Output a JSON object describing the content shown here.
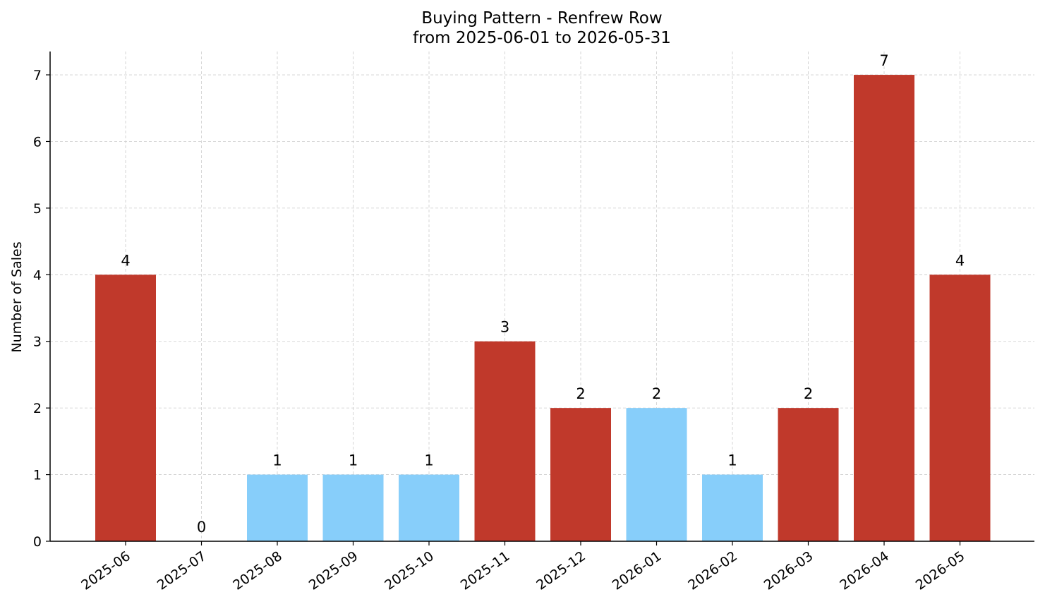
{
  "chart_data": {
    "type": "bar",
    "title": "Buying Pattern - Renfrew Row",
    "subtitle": "from 2025-06-01 to 2026-05-31",
    "xlabel": "",
    "ylabel": "Number of Sales",
    "ylim": [
      0,
      7.35
    ],
    "yticks": [
      "0",
      "1",
      "2",
      "3",
      "4",
      "5",
      "6",
      "7"
    ],
    "grid": true,
    "legend": "none",
    "categories": [
      "2025-06",
      "2025-07",
      "2025-08",
      "2025-09",
      "2025-10",
      "2025-11",
      "2025-12",
      "2026-01",
      "2026-02",
      "2026-03",
      "2026-04",
      "2026-05"
    ],
    "values": [
      4,
      0,
      1,
      1,
      1,
      3,
      2,
      2,
      1,
      2,
      7,
      4
    ],
    "value_labels": [
      "4",
      "0",
      "1",
      "1",
      "1",
      "3",
      "2",
      "2",
      "1",
      "2",
      "7",
      "4"
    ],
    "bar_colors": [
      "#c0392b",
      "#c0392b",
      "#87cefa",
      "#87cefa",
      "#87cefa",
      "#c0392b",
      "#c0392b",
      "#87cefa",
      "#87cefa",
      "#c0392b",
      "#c0392b",
      "#c0392b"
    ]
  }
}
